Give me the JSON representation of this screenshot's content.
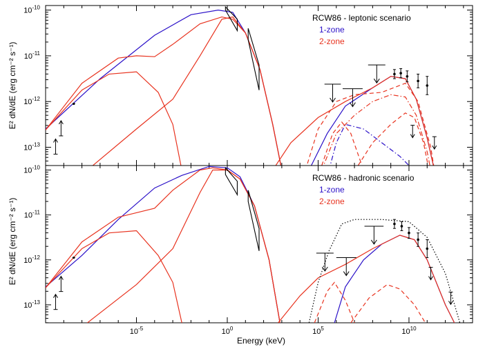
{
  "chart_data": [
    {
      "type": "line",
      "panel": "top",
      "x_scale": "log",
      "y_scale": "log",
      "xlim_log10": [
        -10,
        13.5
      ],
      "ylim_log10": [
        -13.4,
        -9.9
      ],
      "xlabel": "Energy (keV)",
      "ylabel": "E² dN/dE (erg cm⁻² s⁻¹)",
      "y_ticks": [
        {
          "exp": -10,
          "label": "10",
          "sup": "-10"
        },
        {
          "exp": -11,
          "label": "10",
          "sup": "-11"
        },
        {
          "exp": -12,
          "label": "10",
          "sup": "-12"
        },
        {
          "exp": -13,
          "label": "10",
          "sup": "-13"
        }
      ],
      "legend": {
        "title": "RCW86 - leptonic scenario",
        "entries": [
          {
            "label": "1-zone",
            "color": "#2a10c8"
          },
          {
            "label": "2-zone",
            "color": "#e8321e"
          }
        ]
      },
      "series": [
        {
          "color": "#2a10c8",
          "style": "solid",
          "points": [
            [
              -10,
              -12.6
            ],
            [
              -7,
              -11.5
            ],
            [
              -4,
              -10.55
            ],
            [
              -2,
              -10.1
            ],
            [
              -0.5,
              -10.0
            ],
            [
              0.3,
              -10.05
            ],
            [
              1,
              -10.5
            ],
            [
              1.8,
              -11.3
            ],
            [
              2.5,
              -12.5
            ],
            [
              3.0,
              -13.5
            ]
          ]
        },
        {
          "color": "#e8321e",
          "style": "solid",
          "points": [
            [
              -10,
              -12.62
            ],
            [
              -8,
              -11.6
            ],
            [
              -6,
              -11.05
            ],
            [
              -5,
              -11.0
            ],
            [
              -4,
              -11.02
            ],
            [
              -3,
              -10.75
            ],
            [
              -1.5,
              -10.3
            ],
            [
              -0.3,
              -10.15
            ],
            [
              0.3,
              -10.2
            ],
            [
              1,
              -10.5
            ],
            [
              1.8,
              -11.3
            ],
            [
              2.5,
              -12.5
            ],
            [
              3.0,
              -13.5
            ]
          ]
        },
        {
          "color": "#e8321e",
          "style": "solid",
          "points": [
            [
              -10,
              -12.62
            ],
            [
              -8,
              -11.75
            ],
            [
              -6.5,
              -11.4
            ],
            [
              -5,
              -11.35
            ],
            [
              -3.8,
              -11.8
            ],
            [
              -3,
              -12.5
            ],
            [
              -2.5,
              -13.5
            ]
          ]
        },
        {
          "color": "#e8321e",
          "style": "solid",
          "points": [
            [
              -7.7,
              -13.5
            ],
            [
              -5,
              -12.6
            ],
            [
              -3,
              -11.95
            ],
            [
              -1.5,
              -11.0
            ],
            [
              -0.3,
              -10.2
            ],
            [
              0.3,
              -10.15
            ],
            [
              1,
              -10.5
            ],
            [
              1.8,
              -11.3
            ],
            [
              2.5,
              -12.5
            ],
            [
              3.0,
              -13.5
            ]
          ]
        },
        {
          "color": "#2a10c8",
          "style": "solid",
          "points": [
            [
              4.5,
              -13.5
            ],
            [
              5.5,
              -12.7
            ],
            [
              6.5,
              -12.1
            ],
            [
              8,
              -11.7
            ],
            [
              9,
              -11.45
            ],
            [
              9.8,
              -11.5
            ],
            [
              10.4,
              -11.95
            ],
            [
              11,
              -12.8
            ],
            [
              11.4,
              -13.5
            ]
          ]
        },
        {
          "color": "#e8321e",
          "style": "solid",
          "points": [
            [
              2.5,
              -13.5
            ],
            [
              3.5,
              -12.9
            ],
            [
              5,
              -12.35
            ],
            [
              6.5,
              -12.0
            ],
            [
              8,
              -11.7
            ],
            [
              9,
              -11.45
            ],
            [
              9.8,
              -11.5
            ],
            [
              10.4,
              -11.95
            ],
            [
              11,
              -12.8
            ],
            [
              11.4,
              -13.5
            ]
          ]
        },
        {
          "color": "#2a10c8",
          "style": "dashdot",
          "points": [
            [
              5.6,
              -13.5
            ],
            [
              6,
              -12.9
            ],
            [
              6.5,
              -12.5
            ],
            [
              7.5,
              -12.6
            ],
            [
              8.5,
              -12.9
            ],
            [
              9.5,
              -13.2
            ],
            [
              10,
              -13.4
            ]
          ]
        },
        {
          "color": "#e8321e",
          "style": "dashed",
          "points": [
            [
              4.3,
              -13.5
            ],
            [
              5,
              -12.6
            ],
            [
              6,
              -12.0
            ],
            [
              7,
              -11.85
            ],
            [
              8.5,
              -11.8
            ],
            [
              9.8,
              -11.6
            ],
            [
              10.5,
              -12.0
            ],
            [
              11.2,
              -13.0
            ],
            [
              11.4,
              -13.5
            ]
          ]
        },
        {
          "color": "#e8321e",
          "style": "dashdot",
          "points": [
            [
              5.2,
              -13.5
            ],
            [
              6,
              -12.7
            ],
            [
              7,
              -12.3
            ],
            [
              8,
              -12.0
            ],
            [
              9,
              -11.85
            ],
            [
              9.8,
              -11.9
            ],
            [
              10.4,
              -12.3
            ],
            [
              11,
              -13.1
            ],
            [
              11.2,
              -13.5
            ]
          ]
        },
        {
          "color": "#e8321e",
          "style": "dashed",
          "points": [
            [
              5.2,
              -13.4
            ],
            [
              5.8,
              -12.7
            ],
            [
              6.3,
              -12.45
            ],
            [
              6.8,
              -12.7
            ],
            [
              7.5,
              -13.5
            ]
          ]
        },
        {
          "color": "#e8321e",
          "style": "dashed",
          "points": [
            [
              7.2,
              -13.4
            ],
            [
              8,
              -12.9
            ],
            [
              9,
              -12.5
            ],
            [
              9.8,
              -12.25
            ],
            [
              10.3,
              -12.35
            ],
            [
              10.8,
              -12.9
            ],
            [
              11.1,
              -13.5
            ]
          ]
        }
      ],
      "points_with_errors": [
        {
          "x": -9.45,
          "y": -13.0,
          "arrow": "up"
        },
        {
          "x": -9.15,
          "y": -12.6,
          "arrow": "up"
        },
        {
          "x": -8.45,
          "y": -12.05,
          "err": 0.03
        }
      ],
      "xray_bowties": [
        {
          "x0": -0.1,
          "x1": 0.55,
          "ylo0": -10.0,
          "yhi0": -9.93,
          "ylo1": -10.45,
          "yhi1": -10.2
        },
        {
          "x0": 1.15,
          "x1": 1.75,
          "ylo0": -10.65,
          "yhi0": -10.4,
          "ylo1": -11.75,
          "yhi1": -11.2
        }
      ],
      "upper_limits": [
        {
          "x0": 5.35,
          "x1": 6.25,
          "y": -11.62
        },
        {
          "x0": 6.35,
          "x1": 7.45,
          "y": -11.72
        },
        {
          "x0": 7.75,
          "x1": 8.7,
          "y": -11.2
        }
      ],
      "gamma_points": [
        {
          "x": 9.2,
          "y": -11.4,
          "err": 0.1
        },
        {
          "x": 9.55,
          "y": -11.38,
          "err": 0.1
        },
        {
          "x": 9.9,
          "y": -11.45,
          "err": 0.12
        },
        {
          "x": 10.5,
          "y": -11.55,
          "err": 0.15
        },
        {
          "x": 11.0,
          "y": -11.65,
          "err": 0.2
        }
      ],
      "gamma_limits": [
        {
          "x": 10.2,
          "y": -12.7
        },
        {
          "x": 11.4,
          "y": -12.95
        }
      ]
    },
    {
      "type": "line",
      "panel": "bottom",
      "x_scale": "log",
      "y_scale": "log",
      "xlim_log10": [
        -10,
        13.5
      ],
      "ylim_log10": [
        -13.4,
        -9.9
      ],
      "xlabel": "Energy (keV)",
      "ylabel": "E² dN/dE (erg cm⁻² s⁻¹)",
      "x_ticks": [
        {
          "exp": -5,
          "label": "10",
          "sup": "-5"
        },
        {
          "exp": 0,
          "label": "10",
          "sup": "0"
        },
        {
          "exp": 5,
          "label": "10",
          "sup": "5"
        },
        {
          "exp": 10,
          "label": "10",
          "sup": "10"
        }
      ],
      "y_ticks": [
        {
          "exp": -10,
          "label": "10",
          "sup": "-10"
        },
        {
          "exp": -11,
          "label": "10",
          "sup": "-11"
        },
        {
          "exp": -12,
          "label": "10",
          "sup": "-12"
        },
        {
          "exp": -13,
          "label": "10",
          "sup": "-13"
        }
      ],
      "legend": {
        "title": "RCW86 - hadronic scenario",
        "entries": [
          {
            "label": "1-zone",
            "color": "#2a10c8"
          },
          {
            "label": "2-zone",
            "color": "#e8321e"
          }
        ]
      },
      "series": [
        {
          "color": "#2a10c8",
          "style": "solid",
          "points": [
            [
              -10,
              -12.6
            ],
            [
              -8,
              -11.9
            ],
            [
              -6,
              -11.1
            ],
            [
              -4,
              -10.4
            ],
            [
              -2.5,
              -10.12
            ],
            [
              -1,
              -9.92
            ],
            [
              0,
              -9.95
            ],
            [
              0.7,
              -10.15
            ],
            [
              1.5,
              -10.8
            ],
            [
              2.3,
              -12.0
            ],
            [
              2.9,
              -13.4
            ]
          ]
        },
        {
          "color": "#e8321e",
          "style": "solid",
          "points": [
            [
              -10,
              -12.62
            ],
            [
              -8,
              -11.6
            ],
            [
              -6,
              -11.05
            ],
            [
              -5,
              -10.95
            ],
            [
              -4,
              -10.85
            ],
            [
              -3,
              -10.45
            ],
            [
              -1.5,
              -10.0
            ],
            [
              -0.8,
              -9.95
            ],
            [
              0,
              -10.0
            ],
            [
              0.7,
              -10.2
            ],
            [
              1.5,
              -10.8
            ],
            [
              2.3,
              -12.0
            ],
            [
              2.9,
              -13.4
            ]
          ]
        },
        {
          "color": "#e8321e",
          "style": "solid",
          "points": [
            [
              -10,
              -12.62
            ],
            [
              -8,
              -11.75
            ],
            [
              -6.5,
              -11.4
            ],
            [
              -5,
              -11.35
            ],
            [
              -3.8,
              -11.9
            ],
            [
              -3,
              -12.5
            ],
            [
              -2.5,
              -13.4
            ]
          ]
        },
        {
          "color": "#e8321e",
          "style": "solid",
          "points": [
            [
              -7.7,
              -13.4
            ],
            [
              -5,
              -12.55
            ],
            [
              -3,
              -11.75
            ],
            [
              -1.5,
              -10.5
            ],
            [
              -0.8,
              -10.0
            ],
            [
              0,
              -10.0
            ],
            [
              0.7,
              -10.2
            ],
            [
              1.5,
              -10.8
            ],
            [
              2.3,
              -12.0
            ],
            [
              2.9,
              -13.4
            ]
          ]
        },
        {
          "color": "#2a10c8",
          "style": "solid",
          "points": [
            [
              5.9,
              -13.4
            ],
            [
              6.5,
              -12.6
            ],
            [
              7.5,
              -12.0
            ],
            [
              8.5,
              -11.65
            ],
            [
              9.5,
              -11.45
            ],
            [
              10.3,
              -11.55
            ],
            [
              11,
              -12.0
            ],
            [
              12,
              -13.0
            ],
            [
              12.5,
              -13.4
            ]
          ]
        },
        {
          "color": "#e8321e",
          "style": "solid",
          "points": [
            [
              2.8,
              -13.4
            ],
            [
              4,
              -12.8
            ],
            [
              5,
              -12.4
            ],
            [
              6.5,
              -12.1
            ],
            [
              8,
              -11.75
            ],
            [
              9.5,
              -11.45
            ],
            [
              10.3,
              -11.55
            ],
            [
              11,
              -12.0
            ],
            [
              12,
              -13.0
            ],
            [
              12.5,
              -13.4
            ]
          ]
        },
        {
          "color": "#000000",
          "style": "dotted",
          "points": [
            [
              4.5,
              -13.4
            ],
            [
              5,
              -12.5
            ],
            [
              5.6,
              -11.8
            ],
            [
              6.3,
              -11.2
            ],
            [
              7,
              -11.1
            ],
            [
              8.5,
              -11.1
            ],
            [
              10,
              -11.15
            ],
            [
              11,
              -11.5
            ],
            [
              12,
              -12.3
            ],
            [
              12.8,
              -13.4
            ]
          ]
        },
        {
          "color": "#e8321e",
          "style": "dashed",
          "points": [
            [
              4.8,
              -13.4
            ],
            [
              5.5,
              -12.7
            ],
            [
              5.9,
              -12.5
            ],
            [
              6.5,
              -12.9
            ],
            [
              7,
              -13.4
            ]
          ]
        },
        {
          "color": "#e8321e",
          "style": "dashed",
          "points": [
            [
              6.8,
              -13.4
            ],
            [
              7.8,
              -12.85
            ],
            [
              8.8,
              -12.55
            ],
            [
              9.5,
              -12.65
            ],
            [
              10.3,
              -13.0
            ],
            [
              10.9,
              -13.4
            ]
          ]
        }
      ],
      "points_with_errors": [
        {
          "x": -9.45,
          "y": -12.95,
          "arrow": "up"
        },
        {
          "x": -9.15,
          "y": -12.55,
          "arrow": "up"
        },
        {
          "x": -8.45,
          "y": -11.95,
          "err": 0.03
        }
      ],
      "xray_bowties": [
        {
          "x0": -0.1,
          "x1": 0.55,
          "ylo0": -10.1,
          "yhi0": -9.95,
          "ylo1": -10.55,
          "yhi1": -10.25
        },
        {
          "x0": 1.15,
          "x1": 1.75,
          "ylo0": -10.7,
          "yhi0": -10.45,
          "ylo1": -11.8,
          "yhi1": -11.3
        }
      ],
      "upper_limits": [
        {
          "x0": 4.9,
          "x1": 5.85,
          "y": -11.85
        },
        {
          "x0": 6.0,
          "x1": 7.1,
          "y": -11.95
        },
        {
          "x0": 7.55,
          "x1": 8.6,
          "y": -11.25
        }
      ],
      "gamma_points": [
        {
          "x": 9.2,
          "y": -11.2,
          "err": 0.1
        },
        {
          "x": 9.6,
          "y": -11.25,
          "err": 0.1
        },
        {
          "x": 10.0,
          "y": -11.4,
          "err": 0.12
        },
        {
          "x": 10.5,
          "y": -11.55,
          "err": 0.15
        },
        {
          "x": 11.0,
          "y": -11.75,
          "err": 0.2
        }
      ],
      "gamma_limits": [
        {
          "x": 11.2,
          "y": -12.35
        },
        {
          "x": 12.3,
          "y": -12.9
        }
      ]
    }
  ]
}
